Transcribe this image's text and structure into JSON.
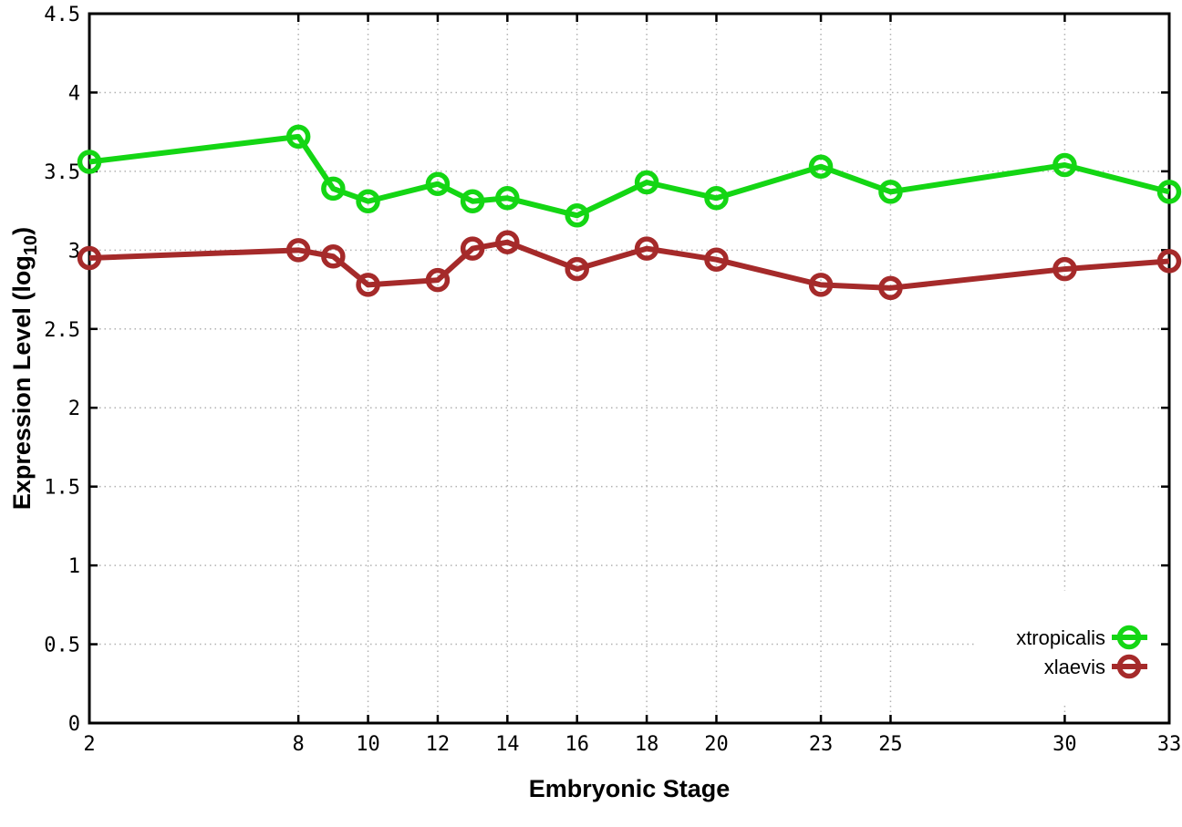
{
  "page": {
    "background": "#ffffff",
    "border_color": "#000000",
    "grid_color": "#b2b2b2"
  },
  "chart_data": {
    "type": "line",
    "title": "",
    "xlabel": "Embryonic Stage",
    "ylabel": "Expression Level (log10)",
    "ylabel_parts": {
      "prefix": "Expression Level (log",
      "subscript": "10",
      "suffix": ")"
    },
    "xlim": [
      2,
      33
    ],
    "ylim": [
      0,
      4.5
    ],
    "grid": "dotted",
    "marker": "open-circle",
    "x": [
      2,
      8,
      9,
      10,
      12,
      13,
      14,
      16,
      18,
      20,
      23,
      25,
      30,
      33
    ],
    "series": [
      {
        "name": "xtropicalis",
        "color": "#14d614",
        "values": [
          3.56,
          3.72,
          3.39,
          3.31,
          3.42,
          3.31,
          3.33,
          3.22,
          3.43,
          3.33,
          3.53,
          3.37,
          3.54,
          3.37
        ]
      },
      {
        "name": "xlaevis",
        "color": "#a52a2a",
        "values": [
          2.95,
          3.0,
          2.96,
          2.78,
          2.81,
          3.01,
          3.05,
          2.88,
          3.01,
          2.94,
          2.78,
          2.76,
          2.88,
          2.93
        ]
      }
    ],
    "x_ticks": {
      "values": [
        2,
        8,
        10,
        12,
        14,
        16,
        18,
        20,
        23,
        25,
        30,
        33
      ],
      "labels": [
        "2",
        "8",
        "10",
        "12",
        "14",
        "16",
        "18",
        "20",
        "23",
        "25",
        "30",
        "33"
      ]
    },
    "y_ticks": {
      "values": [
        0,
        0.5,
        1,
        1.5,
        2,
        2.5,
        3,
        3.5,
        4,
        4.5
      ],
      "labels": [
        "0",
        "0.5",
        "1",
        "1.5",
        "2",
        "2.5",
        "3",
        "3.5",
        "4",
        "4.5"
      ]
    },
    "legend": {
      "position": "inside-bottom-right",
      "entries": [
        {
          "label": "xtropicalis",
          "color": "#14d614"
        },
        {
          "label": "xlaevis",
          "color": "#a52a2a"
        }
      ]
    }
  }
}
